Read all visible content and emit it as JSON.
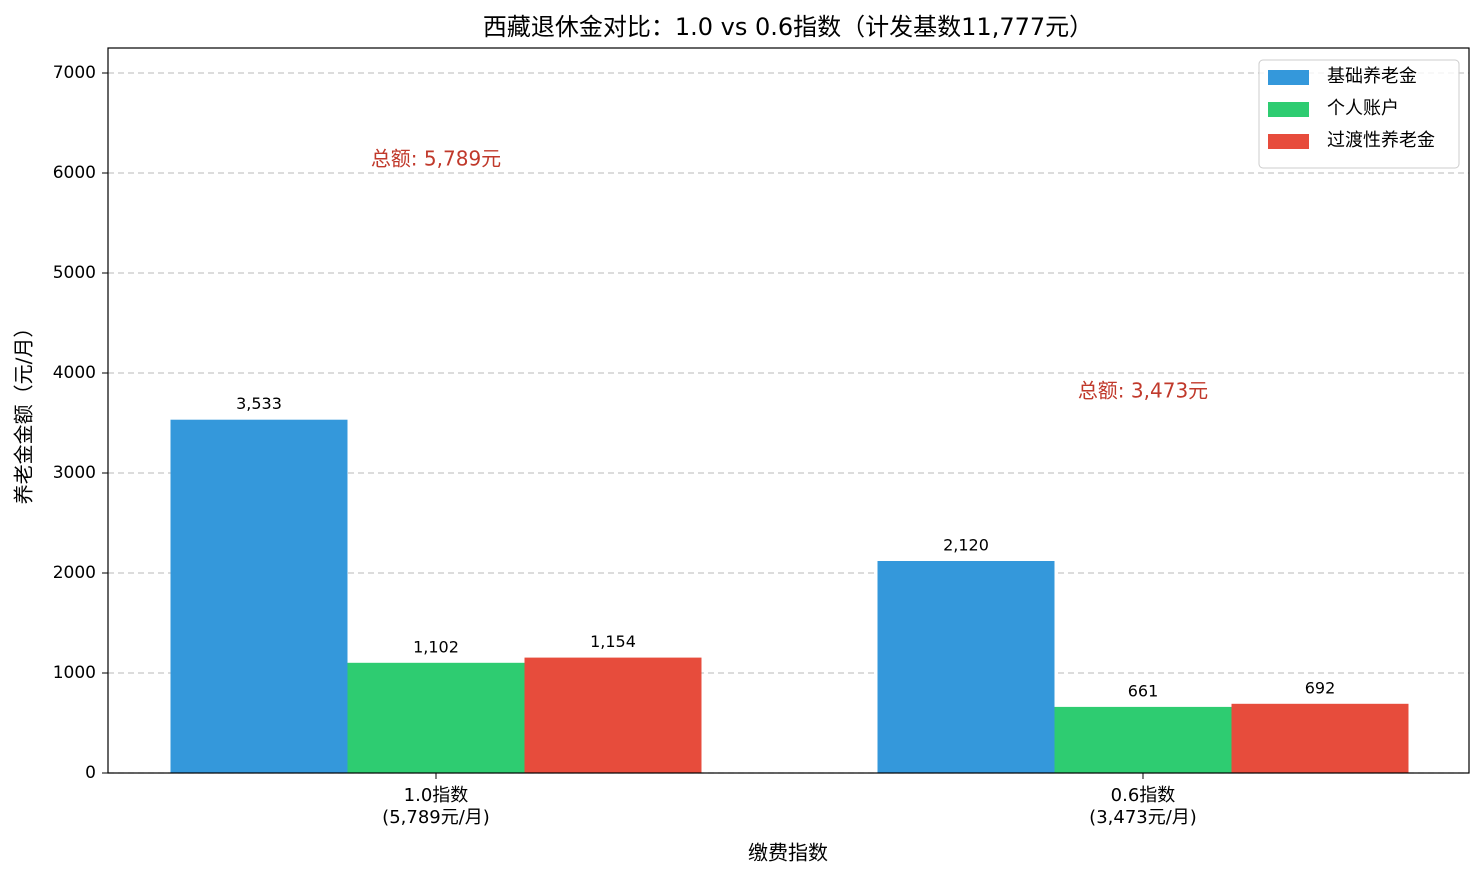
{
  "chart_data": {
    "type": "bar",
    "title": "西藏退休金对比：1.0 vs 0.6指数（计发基数11,777元）",
    "x_label": "缴费指数",
    "y_label": "养老金金额（元/月）",
    "categories": [
      "1.0指数\n(5,789元/月)",
      "0.6指数\n(3,473元/月)"
    ],
    "series": [
      {
        "name": "基础养老金",
        "color": "#3498db",
        "values": [
          3533,
          2120
        ],
        "value_labels": [
          "3,533",
          "2,120"
        ]
      },
      {
        "name": "个人账户",
        "color": "#2ecc71",
        "values": [
          1102,
          661
        ],
        "value_labels": [
          "1,102",
          "661"
        ]
      },
      {
        "name": "过渡性养老金",
        "color": "#e74c3c",
        "values": [
          1154,
          692
        ],
        "value_labels": [
          "1,154",
          "692"
        ]
      }
    ],
    "annotations": [
      "总额: 5,789元",
      "总额: 3,473元"
    ],
    "annotation_color": "#c0392b",
    "ylim": [
      0,
      7250
    ],
    "yticks": [
      0,
      1000,
      2000,
      3000,
      4000,
      5000,
      6000,
      7000
    ],
    "grid": true,
    "legend": "upper right"
  }
}
